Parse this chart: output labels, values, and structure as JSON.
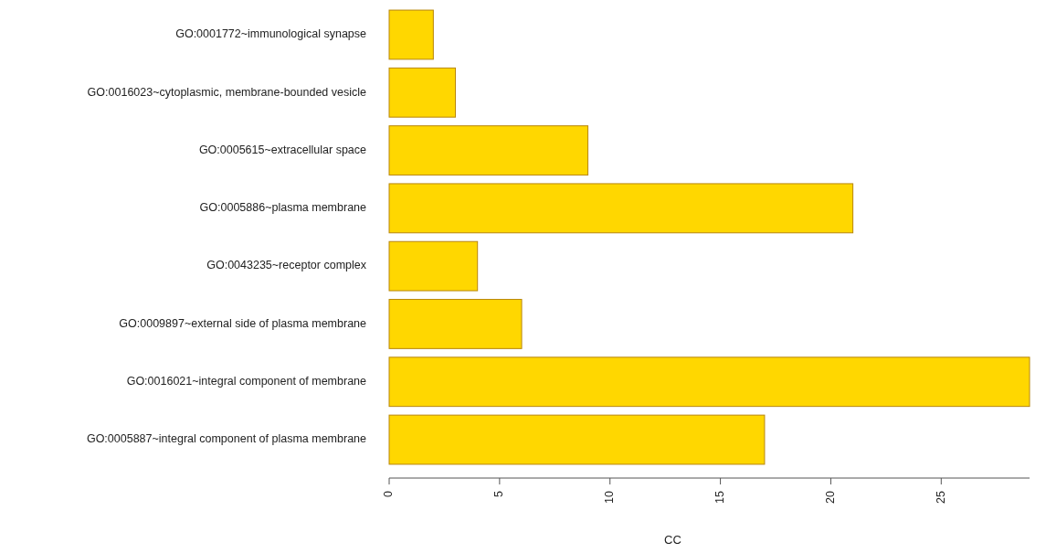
{
  "chart_data": {
    "type": "bar",
    "orientation": "horizontal",
    "xlabel": "CC",
    "categories": [
      "GO:0001772~immunological synapse",
      "GO:0016023~cytoplasmic, membrane-bounded vesicle",
      "GO:0005615~extracellular space",
      "GO:0005886~plasma membrane",
      "GO:0043235~receptor complex",
      "GO:0009897~external side of plasma membrane",
      "GO:0016021~integral component of membrane",
      "GO:0005887~integral component of plasma membrane"
    ],
    "values": [
      2,
      3,
      9,
      21,
      4,
      6,
      29,
      17
    ],
    "color": "#ffd700",
    "xlim": [
      0,
      29
    ],
    "xticks": [
      0,
      5,
      10,
      15,
      20,
      25
    ],
    "grid": false
  }
}
